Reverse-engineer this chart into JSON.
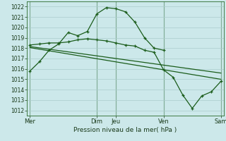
{
  "background_color": "#cce8ea",
  "grid_color": "#aacccc",
  "line_color": "#1a5c1a",
  "xlabel": "Pression niveau de la mer( hPa )",
  "ylim": [
    1011.5,
    1022.5
  ],
  "yticks": [
    1012,
    1013,
    1014,
    1015,
    1016,
    1017,
    1018,
    1019,
    1020,
    1021,
    1022
  ],
  "xtick_labels": [
    "Mer",
    "Dim",
    "Jeu",
    "Ven",
    "Sam"
  ],
  "xtick_positions": [
    0,
    7,
    9,
    14,
    20
  ],
  "vlines": [
    0,
    7,
    9,
    14,
    20
  ],
  "xlim": [
    -0.3,
    20.3
  ],
  "series1": {
    "x": [
      0,
      1,
      2,
      3,
      4,
      5,
      6,
      7,
      8,
      9,
      10,
      11,
      12,
      13,
      14
    ],
    "y": [
      1015.8,
      1016.7,
      1017.8,
      1018.4,
      1019.5,
      1019.2,
      1019.6,
      1021.3,
      1021.9,
      1021.8,
      1021.5,
      1020.5,
      1019.0,
      1018.0,
      1017.8
    ]
  },
  "series2": {
    "x": [
      0,
      1,
      2,
      3,
      4,
      5,
      6,
      7,
      8,
      9,
      10,
      11,
      12,
      13,
      14,
      15,
      16,
      17,
      18,
      19,
      20
    ],
    "y": [
      1018.3,
      1018.4,
      1018.5,
      1018.5,
      1018.6,
      1018.8,
      1018.9,
      1018.8,
      1018.7,
      1018.5,
      1018.3,
      1018.2,
      1017.8,
      1017.6,
      1015.9,
      1015.2,
      1013.5,
      1012.2,
      1013.4,
      1013.8,
      1014.8
    ]
  },
  "series3": {
    "x": [
      0,
      20
    ],
    "y": [
      1018.15,
      1015.6
    ]
  },
  "series4": {
    "x": [
      0,
      20
    ],
    "y": [
      1018.05,
      1015.0
    ]
  },
  "ytick_fontsize": 5.5,
  "xtick_fontsize": 6.0,
  "xlabel_fontsize": 6.5
}
